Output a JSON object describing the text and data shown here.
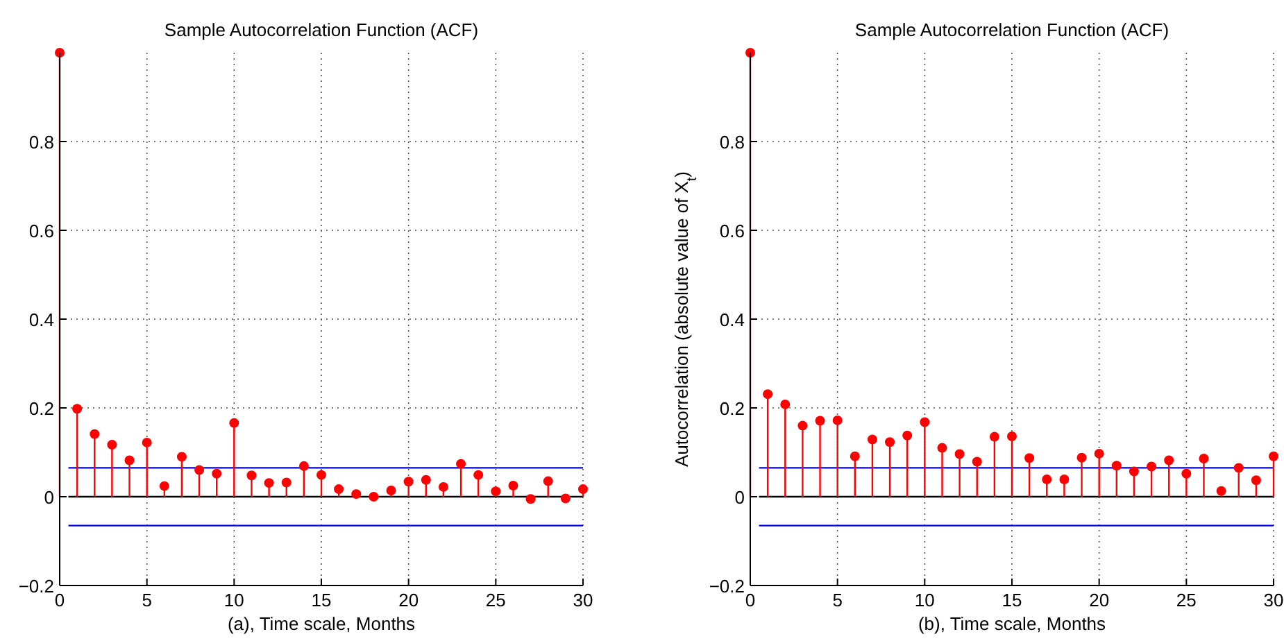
{
  "chart_data": [
    {
      "type": "lollipop",
      "title": "Sample Autocorrelation Function (ACF)",
      "xlabel": "(a), Time scale, Months",
      "x": [
        0,
        1,
        2,
        3,
        4,
        5,
        6,
        7,
        8,
        9,
        10,
        11,
        12,
        13,
        14,
        15,
        16,
        17,
        18,
        19,
        20,
        21,
        22,
        23,
        24,
        25,
        26,
        27,
        28,
        29,
        30
      ],
      "series": [
        {
          "color": "#ff0000",
          "values": [
            1,
            0.198,
            0.141,
            0.117,
            0.082,
            0.122,
            0.024,
            0.09,
            0.06,
            0.052,
            0.166,
            0.048,
            0.031,
            0.032,
            0.069,
            0.049,
            0.017,
            0.006,
            0.0,
            0.014,
            0.034,
            0.038,
            0.022,
            0.074,
            0.049,
            0.012,
            0.025,
            -0.005,
            0.035,
            -0.004,
            0.017
          ]
        }
      ],
      "xlim": [
        0,
        30
      ],
      "xticks": [
        0,
        5,
        10,
        15,
        20,
        25,
        30
      ],
      "ylim": [
        -0.2,
        1
      ],
      "yticks": [
        -0.2,
        0,
        0.2,
        0.4,
        0.6,
        0.8
      ],
      "ref_lines": [
        {
          "axis": "y",
          "value": 0.065,
          "color": "#0000ff"
        },
        {
          "axis": "y",
          "value": -0.065,
          "color": "#0000ff"
        },
        {
          "axis": "y",
          "value": 0,
          "color": "#000000"
        }
      ],
      "grid": true,
      "marker": "circle"
    },
    {
      "type": "lollipop",
      "title": "Sample Autocorrelation Function (ACF)",
      "xlabel": "(b), Time scale, Months",
      "ylabel": "Autocorrelation (absolute value of X$_{t}$)",
      "x": [
        0,
        1,
        2,
        3,
        4,
        5,
        6,
        7,
        8,
        9,
        10,
        11,
        12,
        13,
        14,
        15,
        16,
        17,
        18,
        19,
        20,
        21,
        22,
        23,
        24,
        25,
        26,
        27,
        28,
        29,
        30
      ],
      "series": [
        {
          "color": "#ff0000",
          "values": [
            1,
            0.231,
            0.208,
            0.16,
            0.171,
            0.172,
            0.091,
            0.129,
            0.123,
            0.138,
            0.168,
            0.11,
            0.096,
            0.079,
            0.135,
            0.136,
            0.087,
            0.039,
            0.039,
            0.088,
            0.097,
            0.07,
            0.057,
            0.068,
            0.082,
            0.052,
            0.086,
            0.013,
            0.065,
            0.037,
            0.091
          ]
        }
      ],
      "xlim": [
        0,
        30
      ],
      "xticks": [
        0,
        5,
        10,
        15,
        20,
        25,
        30
      ],
      "ylim": [
        -0.2,
        1
      ],
      "yticks": [
        -0.2,
        0,
        0.2,
        0.4,
        0.6,
        0.8
      ],
      "ref_lines": [
        {
          "axis": "y",
          "value": 0.065,
          "color": "#0000ff"
        },
        {
          "axis": "y",
          "value": -0.065,
          "color": "#0000ff"
        },
        {
          "axis": "y",
          "value": 0,
          "color": "#000000"
        }
      ],
      "grid": true,
      "marker": "circle"
    }
  ]
}
